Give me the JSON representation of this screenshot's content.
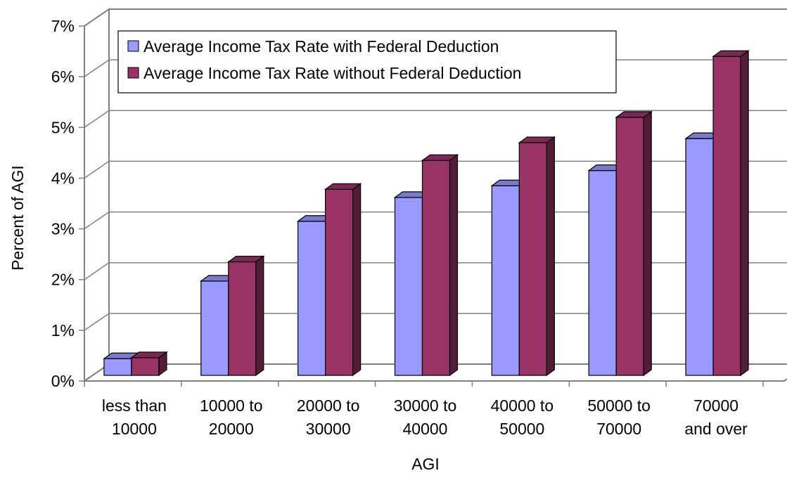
{
  "chart_data": {
    "type": "bar",
    "categories": [
      [
        "less than",
        "10000"
      ],
      [
        "10000 to",
        "20000"
      ],
      [
        "20000 to",
        "30000"
      ],
      [
        "30000 to",
        "40000"
      ],
      [
        "40000 to",
        "50000"
      ],
      [
        "50000 to",
        "70000"
      ],
      [
        "70000",
        "and over"
      ]
    ],
    "series": [
      {
        "name": "Average Income Tax Rate with Federal Deduction",
        "color": "#9999ff",
        "values": [
          0.44,
          1.97,
          3.15,
          3.62,
          3.85,
          4.15,
          4.78
        ]
      },
      {
        "name": "Average Income Tax Rate without Federal Deduction",
        "color": "#993366",
        "values": [
          0.46,
          2.35,
          3.78,
          4.35,
          4.7,
          5.2,
          6.4
        ]
      }
    ],
    "xlabel": "AGI",
    "ylabel": "Percent of AGI",
    "ylim": [
      0,
      7
    ],
    "yticks": [
      "0%",
      "1%",
      "2%",
      "3%",
      "4%",
      "5%",
      "6%",
      "7%"
    ],
    "grid": true,
    "legend_position": "top-left",
    "style": "3d-clustered-column"
  }
}
